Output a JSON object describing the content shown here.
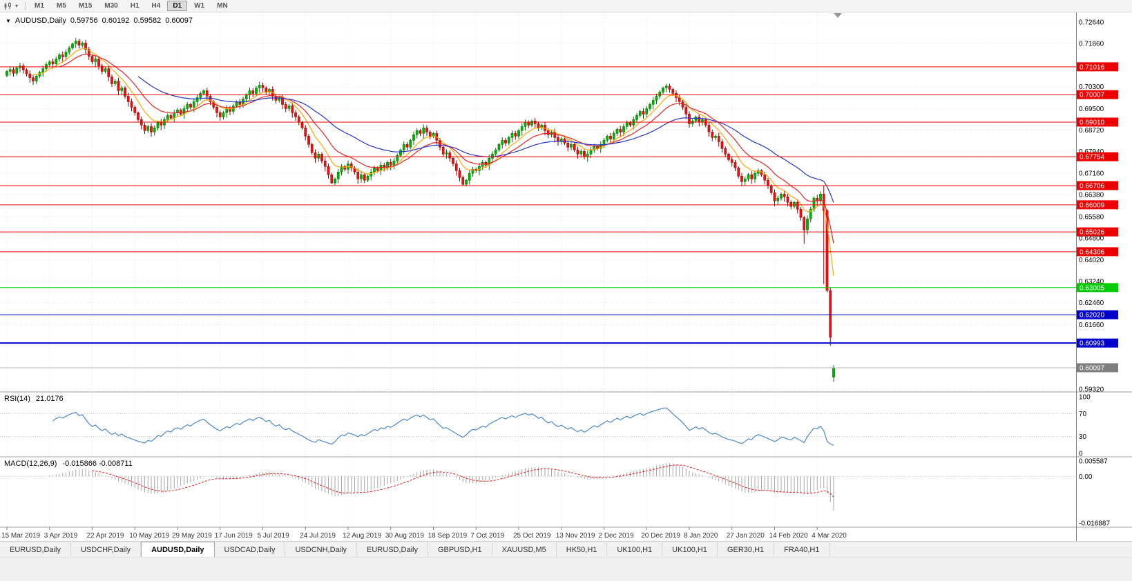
{
  "toolbar": {
    "timeframes": [
      "M1",
      "M5",
      "M15",
      "M30",
      "H1",
      "H4",
      "D1",
      "W1",
      "MN"
    ],
    "active_timeframe": "D1",
    "icons": [
      "candlestick-chart-icon",
      "chart-type-dropdown-caret"
    ]
  },
  "chart": {
    "title": {
      "menu_icon": "▼",
      "symbol": "AUDUSD,Daily",
      "open": "0.59756",
      "high": "0.60192",
      "low": "0.59582",
      "close": "0.60097"
    },
    "axis": {
      "price_labels": [
        {
          "text": "0.72640",
          "type": "grid"
        },
        {
          "text": "0.71860",
          "type": "grid"
        },
        {
          "text": "0.71016",
          "type": "red"
        },
        {
          "text": "0.70300",
          "type": "grid"
        },
        {
          "text": "0.70007",
          "type": "red"
        },
        {
          "text": "0.69500",
          "type": "grid"
        },
        {
          "text": "0.69010",
          "type": "red"
        },
        {
          "text": "0.68720",
          "type": "grid"
        },
        {
          "text": "0.67940",
          "type": "grid"
        },
        {
          "text": "0.67754",
          "type": "red"
        },
        {
          "text": "0.67160",
          "type": "grid"
        },
        {
          "text": "0.66706",
          "type": "red"
        },
        {
          "text": "0.66380",
          "type": "grid"
        },
        {
          "text": "0.66009",
          "type": "red"
        },
        {
          "text": "0.65580",
          "type": "grid"
        },
        {
          "text": "0.65026",
          "type": "red"
        },
        {
          "text": "0.64800",
          "type": "grid"
        },
        {
          "text": "0.64306",
          "type": "red"
        },
        {
          "text": "0.64020",
          "type": "grid"
        },
        {
          "text": "0.63240",
          "type": "grid"
        },
        {
          "text": "0.63005",
          "type": "green"
        },
        {
          "text": "0.62460",
          "type": "grid"
        },
        {
          "text": "0.62020",
          "type": "blue"
        },
        {
          "text": "0.61660",
          "type": "grid"
        },
        {
          "text": "0.60993",
          "type": "blue"
        },
        {
          "text": "0.60097",
          "type": "current"
        },
        {
          "text": "0.59320",
          "type": "grid"
        }
      ],
      "date_labels": [
        "15 Mar 2019",
        "3 Apr 2019",
        "22 Apr 2019",
        "10 May 2019",
        "29 May 2019",
        "17 Jun 2019",
        "5 Jul 2019",
        "24 Jul 2019",
        "12 Aug 2019",
        "30 Aug 2019",
        "18 Sep 2019",
        "7 Oct 2019",
        "25 Oct 2019",
        "13 Nov 2019",
        "2 Dec 2019",
        "20 Dec 2019",
        "8 Jan 2020",
        "27 Jan 2020",
        "14 Feb 2020",
        "4 Mar 2020"
      ],
      "label_step": 13
    },
    "levels": [
      {
        "price": 0.71016,
        "color": "red",
        "width": 1
      },
      {
        "price": 0.70007,
        "color": "red",
        "width": 1
      },
      {
        "price": 0.6901,
        "color": "red",
        "width": 1
      },
      {
        "price": 0.67754,
        "color": "red",
        "width": 1
      },
      {
        "price": 0.66706,
        "color": "red",
        "width": 1
      },
      {
        "price": 0.66009,
        "color": "red",
        "width": 1
      },
      {
        "price": 0.65026,
        "color": "red",
        "width": 1
      },
      {
        "price": 0.64306,
        "color": "red",
        "width": 1
      },
      {
        "price": 0.63005,
        "color": "green",
        "width": 1
      },
      {
        "price": 0.6202,
        "color": "blue",
        "width": 1
      },
      {
        "price": 0.60993,
        "color": "blue",
        "width": 2
      }
    ],
    "current_price": {
      "value": 0.60097,
      "text": "0.60097"
    }
  },
  "chart_data": {
    "type": "candlestick",
    "symbol": "AUDUSD",
    "timeframe": "Daily",
    "price_axis": {
      "min": 0.5932,
      "max": 0.7264
    },
    "last_candle": {
      "open": 0.59756,
      "high": 0.60192,
      "low": 0.59582,
      "close": 0.60097
    },
    "candles": {
      "first_open": 0.707,
      "closes": [
        0.7085,
        0.7092,
        0.7078,
        0.7098,
        0.7105,
        0.709,
        0.7076,
        0.7062,
        0.705,
        0.7068,
        0.7082,
        0.7095,
        0.711,
        0.712,
        0.7112,
        0.713,
        0.7145,
        0.7138,
        0.7155,
        0.717,
        0.7185,
        0.7195,
        0.718,
        0.7188,
        0.7165,
        0.714,
        0.712,
        0.713,
        0.7105,
        0.7085,
        0.7095,
        0.7065,
        0.704,
        0.705,
        0.7015,
        0.7025,
        0.6995,
        0.6975,
        0.6955,
        0.6935,
        0.691,
        0.689,
        0.687,
        0.6885,
        0.6865,
        0.688,
        0.69,
        0.689,
        0.691,
        0.6925,
        0.6915,
        0.6935,
        0.6945,
        0.693,
        0.695,
        0.6965,
        0.6955,
        0.6975,
        0.699,
        0.7005,
        0.7015,
        0.6995,
        0.6975,
        0.6955,
        0.6935,
        0.692,
        0.6935,
        0.695,
        0.694,
        0.696,
        0.6975,
        0.6965,
        0.6985,
        0.7,
        0.7015,
        0.7005,
        0.7025,
        0.7035,
        0.7025,
        0.701,
        0.702,
        0.6995,
        0.698,
        0.699,
        0.6965,
        0.695,
        0.696,
        0.6935,
        0.692,
        0.69,
        0.688,
        0.685,
        0.682,
        0.679,
        0.677,
        0.6785,
        0.676,
        0.674,
        0.671,
        0.668,
        0.6695,
        0.672,
        0.674,
        0.673,
        0.675,
        0.6735,
        0.672,
        0.6695,
        0.671,
        0.669,
        0.6705,
        0.672,
        0.6735,
        0.6725,
        0.6745,
        0.6735,
        0.6755,
        0.6745,
        0.676,
        0.678,
        0.68,
        0.682,
        0.681,
        0.6835,
        0.6855,
        0.687,
        0.686,
        0.688,
        0.6865,
        0.685,
        0.686,
        0.6835,
        0.681,
        0.6785,
        0.679,
        0.677,
        0.675,
        0.6725,
        0.67,
        0.6675,
        0.669,
        0.6715,
        0.673,
        0.6725,
        0.674,
        0.6755,
        0.6745,
        0.677,
        0.6785,
        0.68,
        0.682,
        0.6835,
        0.6825,
        0.6845,
        0.686,
        0.685,
        0.687,
        0.6885,
        0.69,
        0.689,
        0.6905,
        0.6895,
        0.688,
        0.689,
        0.687,
        0.6855,
        0.6865,
        0.6845,
        0.683,
        0.684,
        0.6825,
        0.681,
        0.682,
        0.68,
        0.6785,
        0.6795,
        0.6775,
        0.6785,
        0.68,
        0.6815,
        0.6805,
        0.682,
        0.6835,
        0.685,
        0.684,
        0.686,
        0.6875,
        0.6865,
        0.6885,
        0.69,
        0.689,
        0.691,
        0.6925,
        0.694,
        0.693,
        0.695,
        0.6965,
        0.698,
        0.6995,
        0.701,
        0.7025,
        0.7032,
        0.702,
        0.7005,
        0.699,
        0.6975,
        0.6955,
        0.693,
        0.6895,
        0.6905,
        0.692,
        0.69,
        0.691,
        0.689,
        0.6865,
        0.6845,
        0.685,
        0.683,
        0.6805,
        0.6785,
        0.6765,
        0.6755,
        0.6735,
        0.6705,
        0.6685,
        0.6695,
        0.671,
        0.6695,
        0.6715,
        0.6725,
        0.671,
        0.669,
        0.667,
        0.6645,
        0.6615,
        0.6625,
        0.664,
        0.663,
        0.661,
        0.6595,
        0.661,
        0.6585,
        0.6555,
        0.651,
        0.655,
        0.6585,
        0.6625,
        0.6615,
        0.664,
        0.658,
        0.629,
        0.612,
        0.60097
      ],
      "specials": {
        "21": {
          "h": 0.7206
        },
        "99": {
          "l": 0.6677
        },
        "139": {
          "l": 0.667
        },
        "201": {
          "h": 0.704
        },
        "234": {
          "l": 0.6596
        },
        "243": {
          "l": 0.646
        },
        "249": {
          "h": 0.667,
          "l": 0.6313
        },
        "251": {
          "l": 0.609
        },
        "252": {
          "o": 0.59756,
          "h": 0.60192,
          "l": 0.59582
        }
      }
    },
    "overlays": [
      {
        "name": "ma-fast",
        "period": 8,
        "color": "#FFA500"
      },
      {
        "name": "ma-mid",
        "period": 16,
        "color": "#EE2222"
      },
      {
        "name": "ma-slow",
        "period": 40,
        "color": "#2433CC"
      }
    ],
    "indicators": [
      {
        "name": "RSI",
        "label": "RSI(14)",
        "value_text": "21.0176",
        "period": 14,
        "levels": [
          100,
          70,
          30,
          0
        ],
        "line_color": "#4A86C8"
      },
      {
        "name": "MACD",
        "label": "MACD(12,26,9)",
        "value_text": "-0.015866 -0.008711",
        "fast": 12,
        "slow": 26,
        "signal": 9,
        "scale": {
          "max": 0.005587,
          "min": -0.016887
        },
        "scale_labels": [
          "0.005587",
          "0.00",
          "-0.016887"
        ]
      }
    ]
  },
  "bottom_tabs": {
    "tabs": [
      "EURUSD,Daily",
      "USDCHF,Daily",
      "AUDUSD,Daily",
      "USDCAD,Daily",
      "USDCNH,Daily",
      "EURUSD,Daily",
      "GBPUSD,H1",
      "XAUUSD,M5",
      "HK50,H1",
      "UK100,H1",
      "UK100,H1",
      "GER30,H1",
      "FRA40,H1"
    ],
    "active_index": 2
  },
  "colors": {
    "bull": "#00B400",
    "bull_border": "#007000",
    "bear": "#EE1111",
    "bear_border": "#8B0000",
    "level_red": "#EE0000",
    "level_green": "#00CC00",
    "level_blue": "#0000CC",
    "current_badge": "#7F7F7F",
    "grid": "#E5E5E5",
    "macd_hist": "#A6A6A6",
    "macd_signal": "#EE1111",
    "axis_border": "#808080"
  }
}
